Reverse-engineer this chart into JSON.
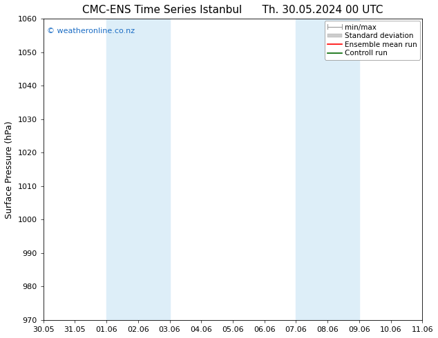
{
  "title_left": "CMC-ENS Time Series Istanbul",
  "title_right": "Th. 30.05.2024 00 UTC",
  "ylabel": "Surface Pressure (hPa)",
  "ylim": [
    970,
    1060
  ],
  "yticks": [
    970,
    980,
    990,
    1000,
    1010,
    1020,
    1030,
    1040,
    1050,
    1060
  ],
  "xtick_labels": [
    "30.05",
    "31.05",
    "01.06",
    "02.06",
    "03.06",
    "04.06",
    "05.06",
    "06.06",
    "07.06",
    "08.06",
    "09.06",
    "10.06",
    "11.06"
  ],
  "shaded_regions": [
    {
      "xstart": 2,
      "xend": 4,
      "color": "#ddeef8"
    },
    {
      "xstart": 8,
      "xend": 10,
      "color": "#ddeef8"
    }
  ],
  "background_color": "#ffffff",
  "plot_bg_color": "#ffffff",
  "watermark_text": "© weatheronline.co.nz",
  "watermark_color": "#1a6cc4",
  "legend_items": [
    {
      "label": "min/max",
      "color": "#aaaaaa"
    },
    {
      "label": "Standard deviation",
      "color": "#cccccc"
    },
    {
      "label": "Ensemble mean run",
      "color": "#ff0000"
    },
    {
      "label": "Controll run",
      "color": "#006600"
    }
  ],
  "title_fontsize": 11,
  "axis_label_fontsize": 9,
  "tick_fontsize": 8,
  "legend_fontsize": 7.5
}
